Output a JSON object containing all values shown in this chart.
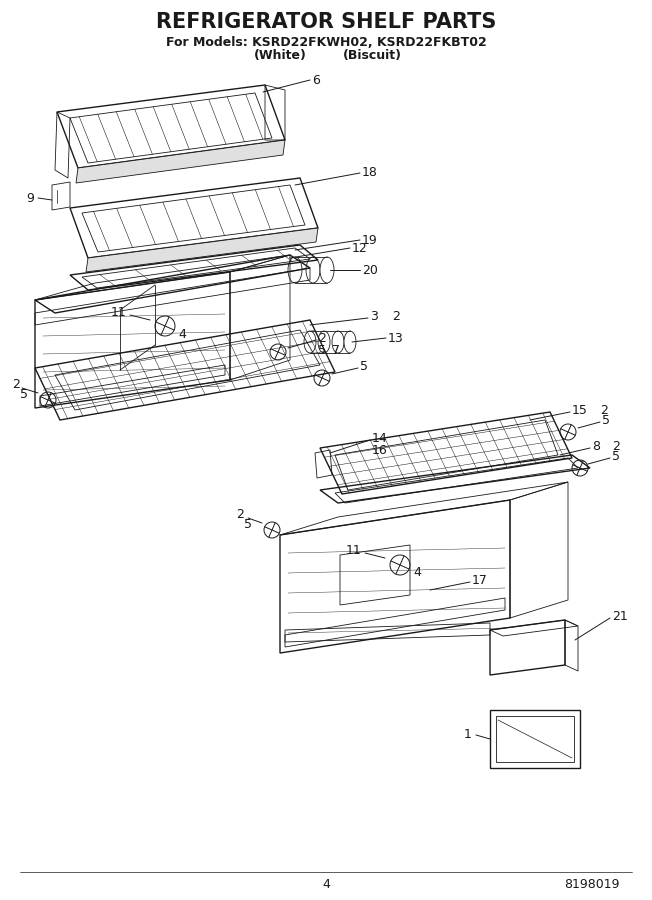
{
  "title": "REFRIGERATOR SHELF PARTS",
  "subtitle_line1": "For Models: KSRD22FKWH02, KSRD22FKBT02",
  "subtitle_line2_a": "(White)",
  "subtitle_line2_b": "(Biscuit)",
  "page_number": "4",
  "doc_number": "8198019",
  "bg_color": "#ffffff",
  "line_color": "#1a1a1a"
}
